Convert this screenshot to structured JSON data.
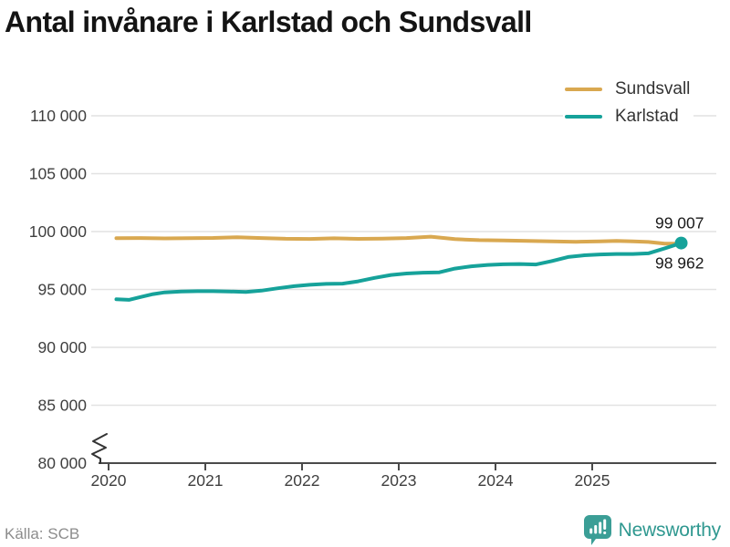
{
  "title": "Antal invånare i Karlstad och Sundsvall",
  "source": "Källa: SCB",
  "logo": {
    "text": "Newsworthy",
    "icon": "newsworthy-bar-chart-speech-bubble",
    "color": "#3b9e96",
    "text_color": "#2f9890"
  },
  "legend": {
    "position": "top-right",
    "items": [
      {
        "label": "Sundsvall",
        "color": "#d9a850"
      },
      {
        "label": "Karlstad",
        "color": "#16a29a"
      }
    ]
  },
  "chart_data": {
    "type": "line",
    "title": "Antal invånare i Karlstad och Sundsvall",
    "xlabel": "",
    "ylabel": "",
    "grid": "horizontal",
    "ylim": [
      80000,
      110000
    ],
    "y_axis_break_at_bottom": true,
    "x_ticks": [
      {
        "value": 2020,
        "label": "2020"
      },
      {
        "value": 2021,
        "label": "2021"
      },
      {
        "value": 2022,
        "label": "2022"
      },
      {
        "value": 2023,
        "label": "2023"
      },
      {
        "value": 2024,
        "label": "2024"
      },
      {
        "value": 2025,
        "label": "2025"
      }
    ],
    "y_ticks": [
      {
        "value": 80000,
        "label": "80 000"
      },
      {
        "value": 85000,
        "label": "85 000"
      },
      {
        "value": 90000,
        "label": "90 000"
      },
      {
        "value": 95000,
        "label": "95 000"
      },
      {
        "value": 100000,
        "label": "100 000"
      },
      {
        "value": 105000,
        "label": "105 000"
      },
      {
        "value": 110000,
        "label": "110 000"
      }
    ],
    "series": [
      {
        "name": "Sundsvall",
        "color": "#d9a850",
        "end_label": "98 962",
        "end_label_position": "below",
        "end_dot": false,
        "points": [
          [
            2020.08,
            99430
          ],
          [
            2020.33,
            99440
          ],
          [
            2020.58,
            99410
          ],
          [
            2020.83,
            99430
          ],
          [
            2021.08,
            99450
          ],
          [
            2021.33,
            99510
          ],
          [
            2021.58,
            99440
          ],
          [
            2021.83,
            99380
          ],
          [
            2022.08,
            99360
          ],
          [
            2022.33,
            99420
          ],
          [
            2022.58,
            99370
          ],
          [
            2022.83,
            99390
          ],
          [
            2023.08,
            99440
          ],
          [
            2023.33,
            99560
          ],
          [
            2023.58,
            99350
          ],
          [
            2023.83,
            99260
          ],
          [
            2024.08,
            99230
          ],
          [
            2024.33,
            99190
          ],
          [
            2024.58,
            99150
          ],
          [
            2024.83,
            99120
          ],
          [
            2025.08,
            99150
          ],
          [
            2025.25,
            99200
          ],
          [
            2025.42,
            99150
          ],
          [
            2025.58,
            99100
          ],
          [
            2025.75,
            98950
          ],
          [
            2025.92,
            98962
          ]
        ]
      },
      {
        "name": "Karlstad",
        "color": "#16a29a",
        "end_label": "99 007",
        "end_label_position": "above",
        "end_dot": true,
        "points": [
          [
            2020.08,
            94150
          ],
          [
            2020.21,
            94100
          ],
          [
            2020.33,
            94350
          ],
          [
            2020.46,
            94600
          ],
          [
            2020.58,
            94750
          ],
          [
            2020.75,
            94820
          ],
          [
            2020.92,
            94850
          ],
          [
            2021.08,
            94850
          ],
          [
            2021.25,
            94830
          ],
          [
            2021.42,
            94780
          ],
          [
            2021.58,
            94900
          ],
          [
            2021.75,
            95100
          ],
          [
            2021.92,
            95280
          ],
          [
            2022.08,
            95400
          ],
          [
            2022.25,
            95480
          ],
          [
            2022.42,
            95500
          ],
          [
            2022.58,
            95700
          ],
          [
            2022.75,
            96000
          ],
          [
            2022.92,
            96250
          ],
          [
            2023.08,
            96380
          ],
          [
            2023.25,
            96450
          ],
          [
            2023.42,
            96480
          ],
          [
            2023.58,
            96800
          ],
          [
            2023.75,
            97000
          ],
          [
            2023.92,
            97120
          ],
          [
            2024.08,
            97170
          ],
          [
            2024.25,
            97200
          ],
          [
            2024.42,
            97160
          ],
          [
            2024.58,
            97450
          ],
          [
            2024.75,
            97800
          ],
          [
            2024.92,
            97950
          ],
          [
            2025.08,
            98020
          ],
          [
            2025.25,
            98060
          ],
          [
            2025.42,
            98060
          ],
          [
            2025.58,
            98120
          ],
          [
            2025.75,
            98550
          ],
          [
            2025.92,
            99007
          ]
        ]
      }
    ],
    "colors": {
      "grid": "#e2e2e2",
      "axis": "#4a4a4a",
      "tick_label": "#3f3f3f",
      "annotation": "#1a1a1a"
    }
  }
}
